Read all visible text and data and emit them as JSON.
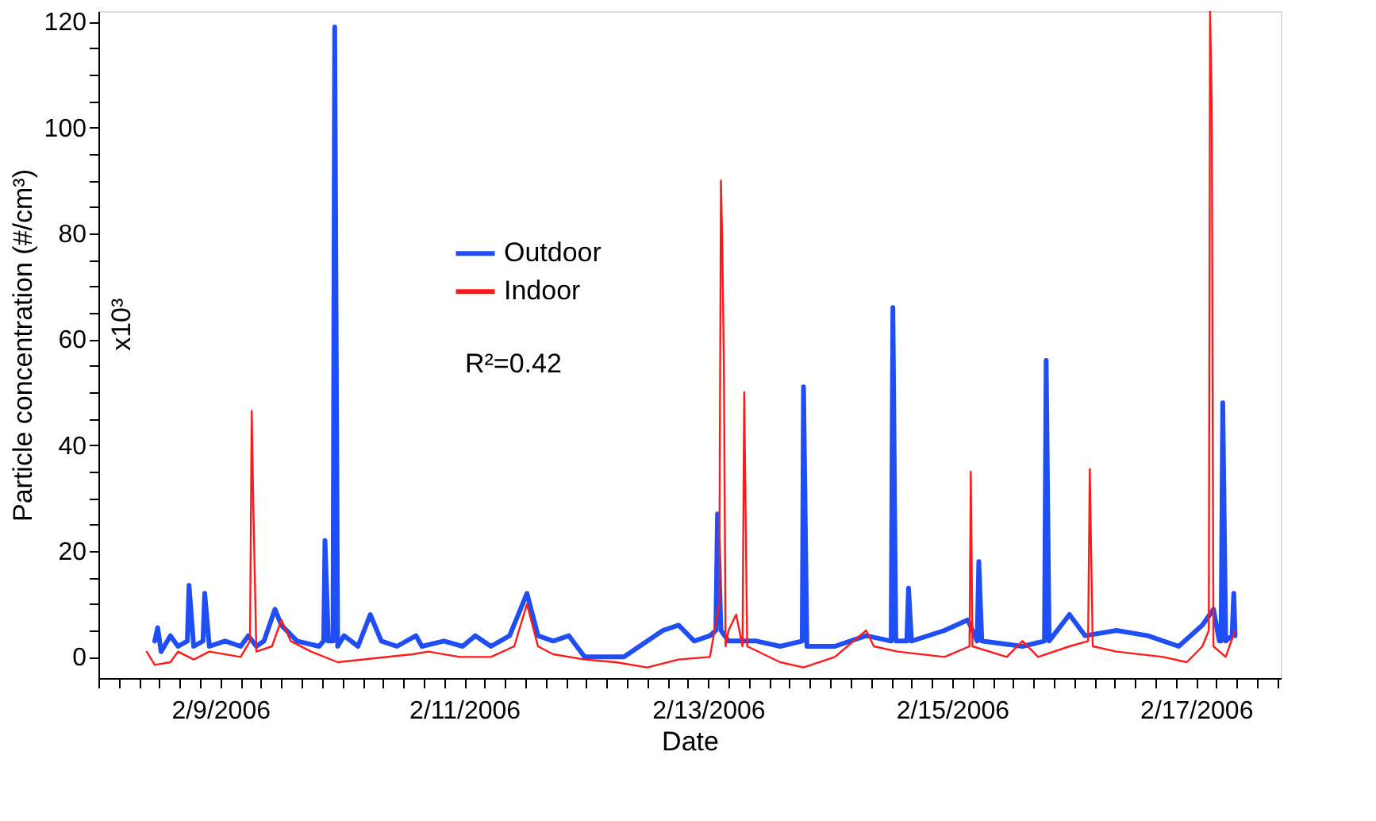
{
  "chart_data": {
    "type": "line",
    "xlabel": "Date",
    "ylabel": "Particle concentration (#/cm³)",
    "annotations": [
      "x10³",
      "R²=0.42"
    ],
    "xlim": [
      "2006-02-08T00:00",
      "2006-02-17T16:40"
    ],
    "ylim": [
      -4,
      122
    ],
    "xticks": [
      {
        "value": "2006-02-08T00:00",
        "label": null
      },
      {
        "value": "2006-02-08T04:00",
        "label": null
      },
      {
        "value": "2006-02-08T08:00",
        "label": null
      },
      {
        "value": "2006-02-08T12:00",
        "label": null
      },
      {
        "value": "2006-02-08T16:00",
        "label": null
      },
      {
        "value": "2006-02-08T20:00",
        "label": null
      },
      {
        "value": "2006-02-09T00:00",
        "label": "2/9/2006"
      },
      {
        "value": "2006-02-09T04:00",
        "label": null
      },
      {
        "value": "2006-02-09T08:00",
        "label": null
      },
      {
        "value": "2006-02-09T12:00",
        "label": null
      },
      {
        "value": "2006-02-09T16:00",
        "label": null
      },
      {
        "value": "2006-02-09T20:00",
        "label": null
      },
      {
        "value": "2006-02-10T00:00",
        "label": null
      },
      {
        "value": "2006-02-10T04:00",
        "label": null
      },
      {
        "value": "2006-02-10T08:00",
        "label": null
      },
      {
        "value": "2006-02-10T12:00",
        "label": null
      },
      {
        "value": "2006-02-10T16:00",
        "label": null
      },
      {
        "value": "2006-02-10T20:00",
        "label": null
      },
      {
        "value": "2006-02-11T00:00",
        "label": "2/11/2006"
      },
      {
        "value": "2006-02-11T04:00",
        "label": null
      },
      {
        "value": "2006-02-11T08:00",
        "label": null
      },
      {
        "value": "2006-02-11T12:00",
        "label": null
      },
      {
        "value": "2006-02-11T16:00",
        "label": null
      },
      {
        "value": "2006-02-11T20:00",
        "label": null
      },
      {
        "value": "2006-02-12T00:00",
        "label": null
      },
      {
        "value": "2006-02-12T04:00",
        "label": null
      },
      {
        "value": "2006-02-12T08:00",
        "label": null
      },
      {
        "value": "2006-02-12T12:00",
        "label": null
      },
      {
        "value": "2006-02-12T16:00",
        "label": null
      },
      {
        "value": "2006-02-12T20:00",
        "label": null
      },
      {
        "value": "2006-02-13T00:00",
        "label": "2/13/2006"
      },
      {
        "value": "2006-02-13T04:00",
        "label": null
      },
      {
        "value": "2006-02-13T08:00",
        "label": null
      },
      {
        "value": "2006-02-13T12:00",
        "label": null
      },
      {
        "value": "2006-02-13T16:00",
        "label": null
      },
      {
        "value": "2006-02-13T20:00",
        "label": null
      },
      {
        "value": "2006-02-14T00:00",
        "label": null
      },
      {
        "value": "2006-02-14T04:00",
        "label": null
      },
      {
        "value": "2006-02-14T08:00",
        "label": null
      },
      {
        "value": "2006-02-14T12:00",
        "label": null
      },
      {
        "value": "2006-02-14T16:00",
        "label": null
      },
      {
        "value": "2006-02-14T20:00",
        "label": null
      },
      {
        "value": "2006-02-15T00:00",
        "label": "2/15/2006"
      },
      {
        "value": "2006-02-15T04:00",
        "label": null
      },
      {
        "value": "2006-02-15T08:00",
        "label": null
      },
      {
        "value": "2006-02-15T12:00",
        "label": null
      },
      {
        "value": "2006-02-15T16:00",
        "label": null
      },
      {
        "value": "2006-02-15T20:00",
        "label": null
      },
      {
        "value": "2006-02-16T00:00",
        "label": null
      },
      {
        "value": "2006-02-16T04:00",
        "label": null
      },
      {
        "value": "2006-02-16T08:00",
        "label": null
      },
      {
        "value": "2006-02-16T12:00",
        "label": null
      },
      {
        "value": "2006-02-16T16:00",
        "label": null
      },
      {
        "value": "2006-02-16T20:00",
        "label": null
      },
      {
        "value": "2006-02-17T00:00",
        "label": "2/17/2006"
      },
      {
        "value": "2006-02-17T04:00",
        "label": null
      },
      {
        "value": "2006-02-17T08:00",
        "label": null
      },
      {
        "value": "2006-02-17T12:00",
        "label": null
      },
      {
        "value": "2006-02-17T16:00",
        "label": null
      }
    ],
    "yticks": [
      0,
      {
        "value": 5,
        "label": null
      },
      {
        "value": 10,
        "label": null
      },
      {
        "value": 15,
        "label": null
      },
      20,
      {
        "value": 25,
        "label": null
      },
      {
        "value": 30,
        "label": null
      },
      {
        "value": 35,
        "label": null
      },
      40,
      {
        "value": 45,
        "label": null
      },
      {
        "value": 50,
        "label": null
      },
      {
        "value": 55,
        "label": null
      },
      60,
      {
        "value": 65,
        "label": null
      },
      {
        "value": 70,
        "label": null
      },
      {
        "value": 75,
        "label": null
      },
      80,
      {
        "value": 85,
        "label": null
      },
      {
        "value": 90,
        "label": null
      },
      {
        "value": 95,
        "label": null
      },
      100,
      {
        "value": 105,
        "label": null
      },
      {
        "value": 110,
        "label": null
      },
      {
        "value": 115,
        "label": null
      },
      120
    ],
    "grid": false,
    "legend": "top",
    "marker": "none",
    "line_style": "solid",
    "series": [
      {
        "name": "Outdoor",
        "color": "#1f4ef5",
        "x": [
          "2006-02-08T11:05",
          "2006-02-08T11:40",
          "2006-02-08T12:20",
          "2006-02-08T14:10",
          "2006-02-08T15:40",
          "2006-02-08T17:30",
          "2006-02-08T17:50",
          "2006-02-08T18:45",
          "2006-02-08T20:35",
          "2006-02-08T20:55",
          "2006-02-08T21:50",
          "2006-02-09T00:55",
          "2006-02-09T04:00",
          "2006-02-09T05:30",
          "2006-02-09T07:05",
          "2006-02-09T08:35",
          "2006-02-09T10:45",
          "2006-02-09T12:00",
          "2006-02-09T15:05",
          "2006-02-09T19:25",
          "2006-02-09T20:20",
          "2006-02-09T20:35",
          "2006-02-09T21:15",
          "2006-02-09T22:10",
          "2006-02-09T22:30",
          "2006-02-09T23:05",
          "2006-02-10T00:20",
          "2006-02-10T03:05",
          "2006-02-10T05:30",
          "2006-02-10T07:40",
          "2006-02-10T10:45",
          "2006-02-10T14:30",
          "2006-02-10T15:40",
          "2006-02-10T20:00",
          "2006-02-10T23:40",
          "2006-02-11T02:10",
          "2006-02-11T05:15",
          "2006-02-11T08:55",
          "2006-02-11T12:20",
          "2006-02-11T14:30",
          "2006-02-11T17:30",
          "2006-02-11T20:35",
          "2006-02-11T23:40",
          "2006-02-12T07:25",
          "2006-02-12T15:05",
          "2006-02-12T18:10",
          "2006-02-12T21:15",
          "2006-02-13T00:20",
          "2006-02-13T01:30",
          "2006-02-13T01:50",
          "2006-02-13T02:30",
          "2006-02-13T04:00",
          "2006-02-13T09:30",
          "2006-02-13T14:10",
          "2006-02-13T18:30",
          "2006-02-13T18:45",
          "2006-02-13T19:25",
          "2006-02-14T00:55",
          "2006-02-14T07:05",
          "2006-02-14T12:00",
          "2006-02-14T12:20",
          "2006-02-14T12:55",
          "2006-02-14T15:05",
          "2006-02-14T15:25",
          "2006-02-14T16:00",
          "2006-02-14T22:30",
          "2006-02-15T03:05",
          "2006-02-15T04:55",
          "2006-02-15T05:15",
          "2006-02-15T05:50",
          "2006-02-15T13:50",
          "2006-02-15T18:10",
          "2006-02-15T18:30",
          "2006-02-15T19:05",
          "2006-02-15T23:05",
          "2006-02-16T02:10",
          "2006-02-16T08:20",
          "2006-02-16T14:30",
          "2006-02-16T20:35",
          "2006-02-17T01:15",
          "2006-02-17T03:25",
          "2006-02-17T04:35",
          "2006-02-17T04:55",
          "2006-02-17T05:15",
          "2006-02-17T05:50",
          "2006-02-17T07:05",
          "2006-02-17T07:25",
          "2006-02-17T07:40"
        ],
        "values": [
          3,
          5.5,
          1,
          4,
          2,
          3,
          13.5,
          2,
          3,
          12,
          2,
          3,
          2,
          4,
          2,
          3,
          9,
          6,
          3,
          2,
          3,
          22,
          3,
          3,
          119,
          2,
          4,
          2,
          8,
          3,
          2,
          4,
          2,
          3,
          2,
          4,
          2,
          4,
          12,
          4,
          3,
          4,
          0,
          0,
          5,
          6,
          3,
          4,
          5,
          27,
          5,
          3,
          3,
          2,
          3,
          51,
          2,
          2,
          4,
          3,
          66,
          3,
          3,
          13,
          3,
          5,
          7,
          3,
          18,
          3,
          2,
          3,
          56,
          3,
          8,
          4,
          5,
          4,
          2,
          6,
          9,
          3,
          3,
          48,
          3,
          4,
          12,
          4
        ]
      },
      {
        "name": "Indoor",
        "color": "#ff1a1a",
        "x": [
          "2006-02-08T09:30",
          "2006-02-08T11:05",
          "2006-02-08T14:10",
          "2006-02-08T15:40",
          "2006-02-08T18:45",
          "2006-02-08T21:50",
          "2006-02-09T04:00",
          "2006-02-09T05:50",
          "2006-02-09T06:10",
          "2006-02-09T06:30",
          "2006-02-09T07:05",
          "2006-02-09T10:10",
          "2006-02-09T12:00",
          "2006-02-09T13:50",
          "2006-02-09T17:50",
          "2006-02-09T23:05",
          "2006-02-10T13:50",
          "2006-02-10T16:55",
          "2006-02-10T23:05",
          "2006-02-11T05:15",
          "2006-02-11T09:50",
          "2006-02-11T12:20",
          "2006-02-11T14:30",
          "2006-02-11T17:30",
          "2006-02-11T23:40",
          "2006-02-12T05:50",
          "2006-02-12T12:00",
          "2006-02-12T18:10",
          "2006-02-13T00:20",
          "2006-02-13T02:10",
          "2006-02-13T02:30",
          "2006-02-13T02:45",
          "2006-02-13T03:05",
          "2006-02-13T03:25",
          "2006-02-13T04:00",
          "2006-02-13T05:30",
          "2006-02-13T06:45",
          "2006-02-13T07:05",
          "2006-02-13T07:40",
          "2006-02-13T14:10",
          "2006-02-13T18:45",
          "2006-02-14T00:55",
          "2006-02-14T07:05",
          "2006-02-14T08:35",
          "2006-02-14T13:15",
          "2006-02-14T22:30",
          "2006-02-15T03:25",
          "2006-02-15T03:40",
          "2006-02-15T04:00",
          "2006-02-15T10:45",
          "2006-02-15T13:50",
          "2006-02-15T16:55",
          "2006-02-15T23:05",
          "2006-02-16T02:45",
          "2006-02-16T03:05",
          "2006-02-16T03:40",
          "2006-02-16T08:20",
          "2006-02-16T17:30",
          "2006-02-16T22:10",
          "2006-02-17T01:15",
          "2006-02-17T02:30",
          "2006-02-17T02:45",
          "2006-02-17T03:05",
          "2006-02-17T03:25",
          "2006-02-17T05:50",
          "2006-02-17T07:40"
        ],
        "values": [
          1,
          -1.5,
          -1,
          1,
          -0.5,
          1,
          0,
          3,
          46.5,
          28,
          1,
          2,
          7,
          3,
          1,
          -1,
          0.5,
          1,
          0,
          0,
          2,
          10,
          2,
          0.5,
          -0.5,
          -1,
          -2,
          -0.5,
          0,
          10,
          90,
          79,
          55,
          2,
          5,
          8,
          2,
          50,
          2,
          -1,
          -2,
          0,
          5,
          2,
          1,
          0,
          2,
          35,
          2,
          0,
          3,
          0,
          2,
          3,
          35.5,
          2,
          1,
          0,
          -1,
          2,
          5,
          122,
          105,
          2,
          0,
          5
        ]
      }
    ]
  }
}
